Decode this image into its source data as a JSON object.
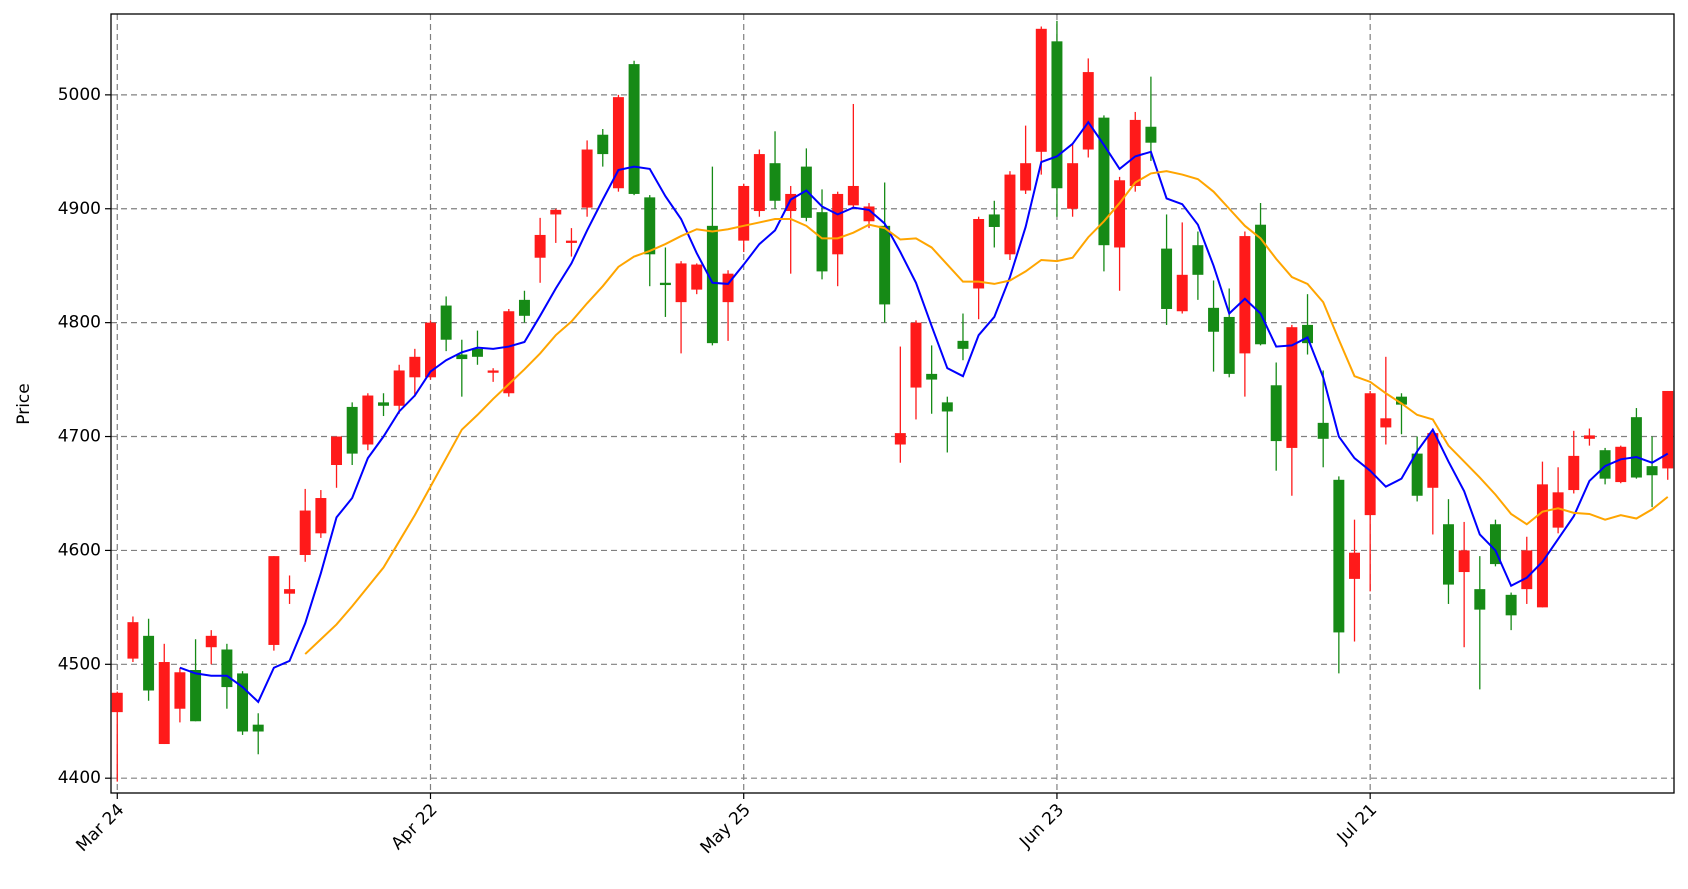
{
  "chart_data": {
    "type": "candlestick",
    "ylabel": "Price",
    "categories": [
      "Mar 24",
      null,
      null,
      null,
      null,
      null,
      null,
      null,
      null,
      null,
      null,
      null,
      null,
      null,
      null,
      null,
      null,
      null,
      null,
      null,
      "Apr 22",
      null,
      null,
      null,
      null,
      null,
      null,
      null,
      null,
      null,
      null,
      null,
      null,
      null,
      null,
      null,
      null,
      null,
      null,
      null,
      "May 25",
      null,
      null,
      null,
      null,
      null,
      null,
      null,
      null,
      null,
      null,
      null,
      null,
      null,
      null,
      null,
      null,
      null,
      null,
      null,
      "Jun 23",
      null,
      null,
      null,
      null,
      null,
      null,
      null,
      null,
      null,
      null,
      null,
      null,
      null,
      null,
      null,
      null,
      null,
      null,
      null,
      "Jul 21",
      null,
      null,
      null,
      null,
      null,
      null,
      null,
      null,
      null,
      null,
      null,
      null,
      null,
      null,
      null,
      null,
      null,
      null,
      null
    ],
    "open": [
      4458,
      4505,
      4525,
      4430,
      4461,
      4495,
      4515,
      4513,
      4492,
      4447,
      4517,
      4562,
      4596,
      4615,
      4675,
      4726,
      4693,
      4730,
      4727,
      4752,
      4752,
      4815,
      4772,
      4777,
      4756,
      4738,
      4820,
      4857,
      4895,
      4870,
      4901,
      4965,
      4918,
      5027,
      4910,
      4835,
      4818,
      4829,
      4885,
      4818,
      4872,
      4898,
      4940,
      4898,
      4937,
      4897,
      4860,
      4903,
      4889,
      4885,
      4693,
      4743,
      4755,
      4730,
      4784,
      4830,
      4895,
      4860,
      4916,
      4950,
      5047,
      4900,
      4952,
      4980,
      4866,
      4920,
      4972,
      4865,
      4810,
      4868,
      4813,
      4805,
      4773,
      4886,
      4745,
      4690,
      4798,
      4712,
      4662,
      4575,
      4631,
      4708,
      4735,
      4685,
      4655,
      4623,
      4581,
      4566,
      4623,
      4561,
      4566,
      4550,
      4620,
      4653,
      4698,
      4688,
      4660,
      4717,
      4674,
      4672
    ],
    "high": [
      4476,
      4542,
      4540,
      4518,
      4497,
      4522,
      4530,
      4518,
      4494,
      4457,
      4595,
      4578,
      4654,
      4653,
      4700,
      4730,
      4738,
      4738,
      4763,
      4777,
      4802,
      4823,
      4785,
      4793,
      4760,
      4812,
      4828,
      4892,
      4900,
      4883,
      4960,
      4970,
      5000,
      5030,
      4912,
      4866,
      4854,
      4852,
      4937,
      4846,
      4922,
      4952,
      4968,
      4920,
      4953,
      4917,
      4915,
      4992,
      4905,
      4923,
      4779,
      4802,
      4780,
      4735,
      4808,
      4893,
      4907,
      4933,
      4973,
      5060,
      5065,
      4957,
      5032,
      4982,
      4928,
      4985,
      5016,
      4895,
      4888,
      4880,
      4837,
      4830,
      4880,
      4905,
      4765,
      4798,
      4825,
      4758,
      4665,
      4627,
      4740,
      4770,
      4738,
      4700,
      4707,
      4645,
      4625,
      4595,
      4627,
      4563,
      4612,
      4678,
      4673,
      4705,
      4707,
      4690,
      4692,
      4725,
      4700,
      4740
    ],
    "low": [
      4397,
      4502,
      4468,
      4430,
      4449,
      4450,
      4500,
      4461,
      4438,
      4421,
      4512,
      4553,
      4590,
      4611,
      4655,
      4675,
      4688,
      4718,
      4720,
      4735,
      4750,
      4775,
      4735,
      4763,
      4748,
      4735,
      4800,
      4835,
      4870,
      4858,
      4893,
      4937,
      4915,
      4912,
      4832,
      4805,
      4773,
      4825,
      4780,
      4784,
      4862,
      4893,
      4900,
      4843,
      4889,
      4838,
      4832,
      4900,
      4883,
      4800,
      4677,
      4715,
      4720,
      4686,
      4767,
      4803,
      4866,
      4855,
      4913,
      4930,
      4893,
      4893,
      4945,
      4845,
      4828,
      4915,
      4942,
      4798,
      4808,
      4820,
      4757,
      4752,
      4735,
      4780,
      4670,
      4648,
      4772,
      4673,
      4492,
      4520,
      4564,
      4693,
      4702,
      4643,
      4614,
      4553,
      4515,
      4478,
      4586,
      4530,
      4553,
      4550,
      4615,
      4650,
      4692,
      4658,
      4659,
      4663,
      4638,
      4662
    ],
    "close": [
      4475,
      4537,
      4477,
      4502,
      4493,
      4450,
      4525,
      4480,
      4441,
      4441,
      4595,
      4566,
      4635,
      4646,
      4700,
      4685,
      4736,
      4727,
      4758,
      4770,
      4800,
      4785,
      4768,
      4770,
      4758,
      4810,
      4806,
      4877,
      4899,
      4872,
      4952,
      4948,
      4998,
      4913,
      4860,
      4833,
      4852,
      4851,
      4782,
      4843,
      4920,
      4948,
      4907,
      4913,
      4892,
      4845,
      4913,
      4920,
      4902,
      4816,
      4703,
      4800,
      4750,
      4722,
      4777,
      4891,
      4884,
      4930,
      4940,
      5058,
      4918,
      4940,
      5020,
      4868,
      4925,
      4978,
      4958,
      4812,
      4842,
      4842,
      4792,
      4755,
      4876,
      4781,
      4696,
      4796,
      4782,
      4698,
      4528,
      4598,
      4738,
      4716,
      4728,
      4648,
      4703,
      4570,
      4600,
      4548,
      4588,
      4543,
      4600,
      4658,
      4651,
      4683,
      4701,
      4663,
      4691,
      4664,
      4666,
      4740
    ],
    "up_color": "#ff1a1a",
    "down_color": "#168a16",
    "series": [
      {
        "color": "#0000ff",
        "values": [
          null,
          null,
          null,
          null,
          4497,
          4492,
          4490,
          4490,
          4480,
          4467,
          4497,
          4503,
          4536,
          4580,
          4629,
          4646,
          4681,
          4700,
          4722,
          4736,
          4757,
          4767,
          4774,
          4778,
          4777,
          4779,
          4783,
          4806,
          4830,
          4852,
          4881,
          4908,
          4934,
          4937,
          4935,
          4911,
          4891,
          4861,
          4835,
          4834,
          4851,
          4869,
          4881,
          4908,
          4916,
          4902,
          4895,
          4901,
          4899,
          4887,
          4862,
          4835,
          4797,
          4760,
          4753,
          4789,
          4805,
          4840,
          4884,
          4941,
          4946,
          4957,
          4976,
          4956,
          4935,
          4946,
          4950,
          4909,
          4904,
          4886,
          4850,
          4808,
          4821,
          4808,
          4779,
          4780,
          4787,
          4752,
          4700,
          4681,
          4670,
          4656,
          4663,
          4687,
          4706,
          4678,
          4652,
          4614,
          4600,
          4569,
          4576,
          4590,
          4610,
          4630,
          4661,
          4674,
          4680,
          4682,
          4677,
          4685
        ]
      },
      {
        "color": "#ffa500",
        "values": [
          null,
          null,
          null,
          null,
          null,
          null,
          null,
          null,
          null,
          null,
          null,
          null,
          4509,
          4522,
          4535,
          4551,
          4568,
          4585,
          4608,
          4631,
          4656,
          4681,
          4706,
          4719,
          4733,
          4746,
          4759,
          4773,
          4789,
          4801,
          4817,
          4832,
          4849,
          4858,
          4863,
          4869,
          4876,
          4882,
          4880,
          4882,
          4885,
          4888,
          4891,
          4891,
          4885,
          4874,
          4874,
          4879,
          4886,
          4883,
          4873,
          4874,
          4866,
          4851,
          4836,
          4836,
          4834,
          4837,
          4845,
          4855,
          4854,
          4857,
          4875,
          4889,
          4905,
          4923,
          4931,
          4933,
          4930,
          4926,
          4915,
          4900,
          4885,
          4874,
          4856,
          4840,
          4834,
          4818,
          4785,
          4753,
          4748,
          4738,
          4729,
          4719,
          4715,
          4692,
          4678,
          4664,
          4649,
          4632,
          4623,
          4634,
          4637,
          4633,
          4632,
          4627,
          4631,
          4628,
          4636,
          4647
        ]
      }
    ],
    "ylim": [
      4387,
      5071
    ],
    "yticks": [
      4400,
      4500,
      4600,
      4700,
      4800,
      4900,
      5000
    ],
    "grid": true
  }
}
